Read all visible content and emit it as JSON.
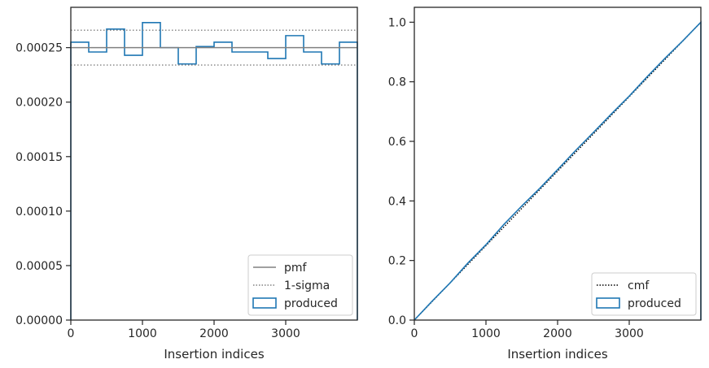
{
  "chart_data": [
    {
      "type": "histogram",
      "xlabel": "Insertion indices",
      "ylabel": "",
      "xlim": [
        0,
        4000
      ],
      "ylim": [
        0,
        0.000287
      ],
      "xticks": [
        0,
        1000,
        2000,
        3000
      ],
      "xtick_labels": [
        "0",
        "1000",
        "2000",
        "3000"
      ],
      "yticks": [
        0,
        5e-05,
        0.0001,
        0.00015,
        0.0002,
        0.00025
      ],
      "ytick_labels": [
        "0.00000",
        "0.00005",
        "0.00010",
        "0.00015",
        "0.00020",
        "0.00025"
      ],
      "bin_edges": [
        0,
        250,
        500,
        750,
        1000,
        1250,
        1500,
        1750,
        2000,
        2250,
        2500,
        2750,
        3000,
        3250,
        3500,
        3750,
        4000
      ],
      "series": [
        {
          "name": "produced",
          "kind": "step",
          "color": "#1f77b4",
          "values": [
            0.000255,
            0.000246,
            0.000267,
            0.000243,
            0.000273,
            0.00025,
            0.000235,
            0.000251,
            0.000255,
            0.000246,
            0.000246,
            0.00024,
            0.000261,
            0.000246,
            0.000235,
            0.000255
          ]
        },
        {
          "name": "pmf",
          "kind": "hline",
          "color": "#808080",
          "value": 0.00025
        },
        {
          "name": "1-sigma",
          "kind": "hline-dotted",
          "color": "#808080",
          "values": [
            0.000266,
            0.000234
          ]
        }
      ],
      "legend": {
        "position": "lower-right",
        "entries": [
          "pmf",
          "1-sigma",
          "produced"
        ]
      },
      "grid": false
    },
    {
      "type": "line",
      "xlabel": "Insertion indices",
      "ylabel": "",
      "xlim": [
        0,
        4000
      ],
      "ylim": [
        0,
        1.05
      ],
      "xticks": [
        0,
        1000,
        2000,
        3000
      ],
      "xtick_labels": [
        "0",
        "1000",
        "2000",
        "3000"
      ],
      "yticks": [
        0,
        0.2,
        0.4,
        0.6,
        0.8,
        1.0
      ],
      "ytick_labels": [
        "0.0",
        "0.2",
        "0.4",
        "0.6",
        "0.8",
        "1.0"
      ],
      "series": [
        {
          "name": "cmf",
          "kind": "dotted-line",
          "color": "#000000",
          "x": [
            0,
            4000
          ],
          "y": [
            0,
            1.0
          ]
        },
        {
          "name": "produced",
          "kind": "step",
          "color": "#1f77b4",
          "x": [
            0,
            250,
            500,
            750,
            1000,
            1250,
            1500,
            1750,
            2000,
            2250,
            2500,
            2750,
            3000,
            3250,
            3500,
            3750,
            4000
          ],
          "y": [
            0,
            0.064,
            0.125,
            0.192,
            0.253,
            0.321,
            0.383,
            0.442,
            0.505,
            0.569,
            0.63,
            0.692,
            0.752,
            0.817,
            0.879,
            0.938,
            1.0
          ]
        }
      ],
      "legend": {
        "position": "lower-right",
        "entries": [
          "cmf",
          "produced"
        ]
      },
      "grid": false
    }
  ]
}
